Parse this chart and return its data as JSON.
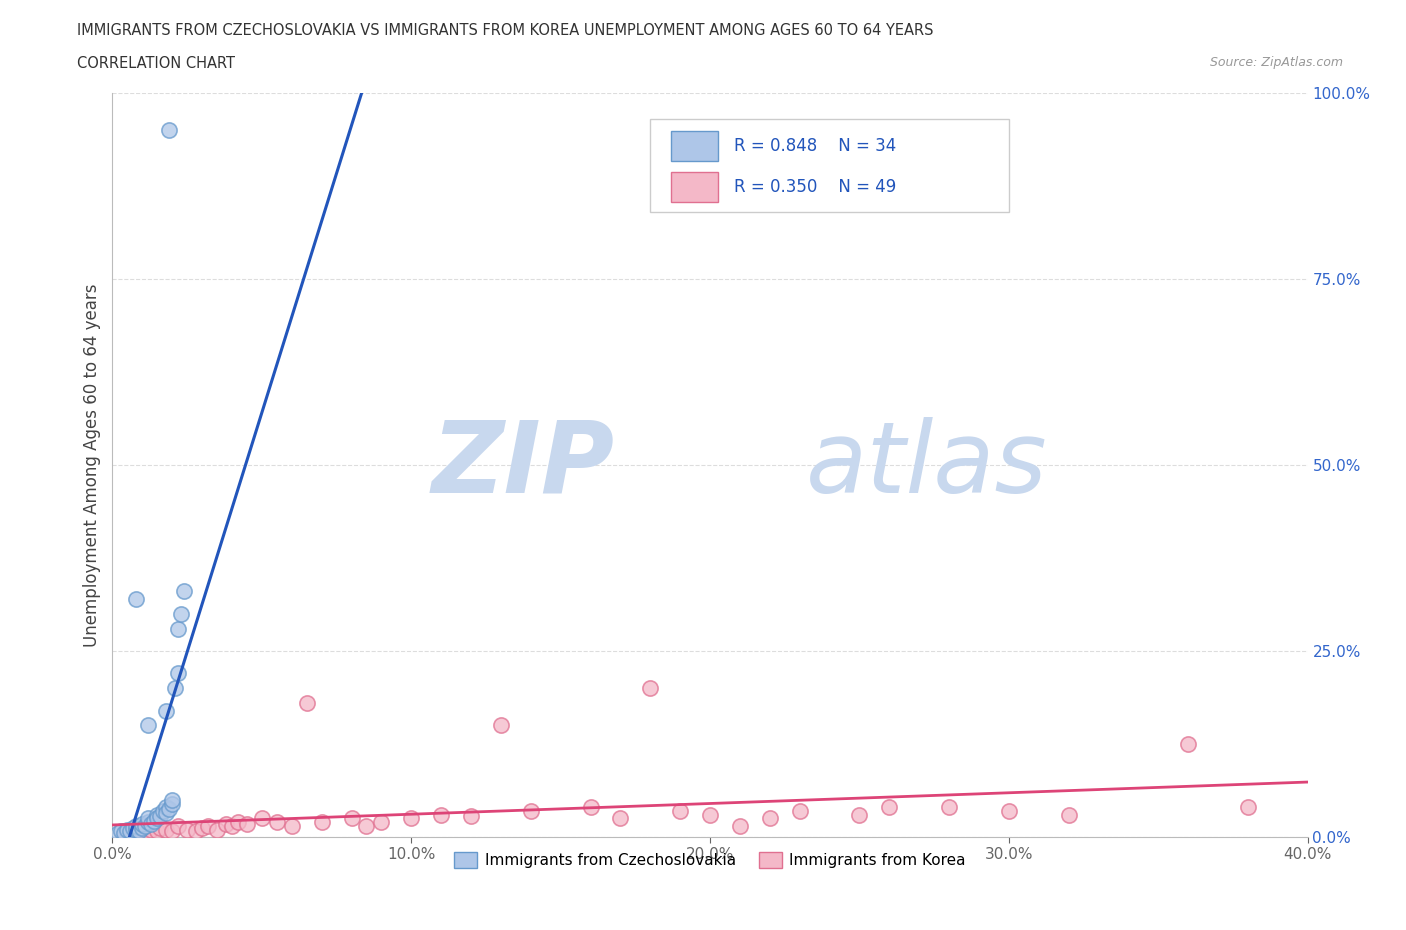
{
  "title_line1": "IMMIGRANTS FROM CZECHOSLOVAKIA VS IMMIGRANTS FROM KOREA UNEMPLOYMENT AMONG AGES 60 TO 64 YEARS",
  "title_line2": "CORRELATION CHART",
  "source_text": "Source: ZipAtlas.com",
  "xlabel_bottom": "Immigrants from Czechoslovakia",
  "ylabel": "Unemployment Among Ages 60 to 64 years",
  "xlim": [
    0.0,
    0.4
  ],
  "ylim": [
    0.0,
    1.0
  ],
  "xtick_labels": [
    "0.0%",
    "10.0%",
    "20.0%",
    "30.0%",
    "40.0%"
  ],
  "xtick_values": [
    0.0,
    0.1,
    0.2,
    0.3,
    0.4
  ],
  "ytick_values": [
    0.0,
    0.25,
    0.5,
    0.75,
    1.0
  ],
  "right_ytick_labels": [
    "0.0%",
    "25.0%",
    "50.0%",
    "75.0%",
    "100.0%"
  ],
  "czech_color": "#aec6e8",
  "czech_edge_color": "#6699cc",
  "korea_color": "#f4b8c8",
  "korea_edge_color": "#e07090",
  "trend_czech_color": "#2255bb",
  "trend_korea_color": "#dd4477",
  "legend_R_czech": "R = 0.848",
  "legend_N_czech": "N = 34",
  "legend_R_korea": "R = 0.350",
  "legend_N_korea": "N = 49",
  "watermark_zip": "ZIP",
  "watermark_atlas": "atlas",
  "watermark_color": "#c8d8ee",
  "background_color": "#ffffff",
  "grid_color": "#dddddd",
  "czech_x": [
    0.002,
    0.003,
    0.004,
    0.005,
    0.006,
    0.007,
    0.008,
    0.008,
    0.009,
    0.01,
    0.01,
    0.011,
    0.012,
    0.012,
    0.013,
    0.014,
    0.015,
    0.015,
    0.016,
    0.017,
    0.018,
    0.018,
    0.019,
    0.02,
    0.02,
    0.021,
    0.022,
    0.022,
    0.023,
    0.024,
    0.018,
    0.012,
    0.008,
    0.019
  ],
  "czech_y": [
    0.005,
    0.008,
    0.005,
    0.01,
    0.008,
    0.012,
    0.01,
    0.015,
    0.008,
    0.012,
    0.018,
    0.015,
    0.02,
    0.025,
    0.018,
    0.022,
    0.03,
    0.025,
    0.028,
    0.035,
    0.04,
    0.032,
    0.038,
    0.045,
    0.05,
    0.2,
    0.22,
    0.28,
    0.3,
    0.33,
    0.17,
    0.15,
    0.32,
    0.95
  ],
  "korea_x": [
    0.005,
    0.007,
    0.008,
    0.01,
    0.011,
    0.012,
    0.013,
    0.015,
    0.016,
    0.018,
    0.02,
    0.022,
    0.025,
    0.028,
    0.03,
    0.032,
    0.035,
    0.038,
    0.04,
    0.042,
    0.045,
    0.05,
    0.055,
    0.06,
    0.065,
    0.07,
    0.08,
    0.085,
    0.09,
    0.1,
    0.11,
    0.12,
    0.13,
    0.14,
    0.16,
    0.17,
    0.18,
    0.19,
    0.2,
    0.21,
    0.22,
    0.23,
    0.25,
    0.26,
    0.28,
    0.3,
    0.32,
    0.36,
    0.38
  ],
  "korea_y": [
    0.005,
    0.008,
    0.005,
    0.01,
    0.008,
    0.005,
    0.01,
    0.008,
    0.012,
    0.01,
    0.008,
    0.015,
    0.01,
    0.008,
    0.012,
    0.015,
    0.01,
    0.018,
    0.015,
    0.02,
    0.018,
    0.025,
    0.02,
    0.015,
    0.18,
    0.02,
    0.025,
    0.015,
    0.02,
    0.025,
    0.03,
    0.028,
    0.15,
    0.035,
    0.04,
    0.025,
    0.2,
    0.035,
    0.03,
    0.015,
    0.025,
    0.035,
    0.03,
    0.04,
    0.04,
    0.035,
    0.03,
    0.125,
    0.04
  ]
}
